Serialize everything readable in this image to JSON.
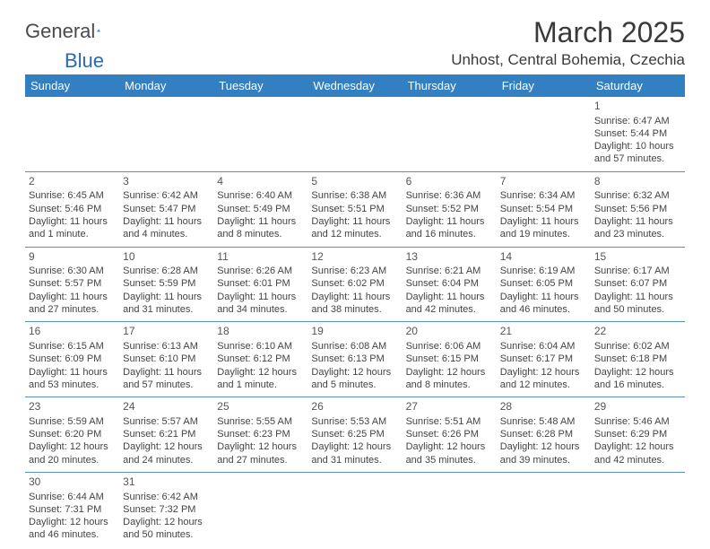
{
  "logo": {
    "part1": "General",
    "part2": "Blue"
  },
  "title": "March 2025",
  "location": "Unhost, Central Bohemia, Czechia",
  "colors": {
    "header_bg": "#327fc2",
    "header_text": "#ffffff",
    "border": "#5a8fc4",
    "text": "#444444",
    "title_text": "#3a3a3a",
    "logo_dark": "#4a4a4a",
    "logo_blue": "#2a6bb0"
  },
  "fonts": {
    "title_size": 32,
    "location_size": 17,
    "dayhead_size": 13,
    "cell_size": 11
  },
  "dayNames": [
    "Sunday",
    "Monday",
    "Tuesday",
    "Wednesday",
    "Thursday",
    "Friday",
    "Saturday"
  ],
  "weeks": [
    [
      null,
      null,
      null,
      null,
      null,
      null,
      {
        "n": "1",
        "sr": "6:47 AM",
        "ss": "5:44 PM",
        "dl": "10 hours and 57 minutes."
      }
    ],
    [
      {
        "n": "2",
        "sr": "6:45 AM",
        "ss": "5:46 PM",
        "dl": "11 hours and 1 minute."
      },
      {
        "n": "3",
        "sr": "6:42 AM",
        "ss": "5:47 PM",
        "dl": "11 hours and 4 minutes."
      },
      {
        "n": "4",
        "sr": "6:40 AM",
        "ss": "5:49 PM",
        "dl": "11 hours and 8 minutes."
      },
      {
        "n": "5",
        "sr": "6:38 AM",
        "ss": "5:51 PM",
        "dl": "11 hours and 12 minutes."
      },
      {
        "n": "6",
        "sr": "6:36 AM",
        "ss": "5:52 PM",
        "dl": "11 hours and 16 minutes."
      },
      {
        "n": "7",
        "sr": "6:34 AM",
        "ss": "5:54 PM",
        "dl": "11 hours and 19 minutes."
      },
      {
        "n": "8",
        "sr": "6:32 AM",
        "ss": "5:56 PM",
        "dl": "11 hours and 23 minutes."
      }
    ],
    [
      {
        "n": "9",
        "sr": "6:30 AM",
        "ss": "5:57 PM",
        "dl": "11 hours and 27 minutes."
      },
      {
        "n": "10",
        "sr": "6:28 AM",
        "ss": "5:59 PM",
        "dl": "11 hours and 31 minutes."
      },
      {
        "n": "11",
        "sr": "6:26 AM",
        "ss": "6:01 PM",
        "dl": "11 hours and 34 minutes."
      },
      {
        "n": "12",
        "sr": "6:23 AM",
        "ss": "6:02 PM",
        "dl": "11 hours and 38 minutes."
      },
      {
        "n": "13",
        "sr": "6:21 AM",
        "ss": "6:04 PM",
        "dl": "11 hours and 42 minutes."
      },
      {
        "n": "14",
        "sr": "6:19 AM",
        "ss": "6:05 PM",
        "dl": "11 hours and 46 minutes."
      },
      {
        "n": "15",
        "sr": "6:17 AM",
        "ss": "6:07 PM",
        "dl": "11 hours and 50 minutes."
      }
    ],
    [
      {
        "n": "16",
        "sr": "6:15 AM",
        "ss": "6:09 PM",
        "dl": "11 hours and 53 minutes."
      },
      {
        "n": "17",
        "sr": "6:13 AM",
        "ss": "6:10 PM",
        "dl": "11 hours and 57 minutes."
      },
      {
        "n": "18",
        "sr": "6:10 AM",
        "ss": "6:12 PM",
        "dl": "12 hours and 1 minute."
      },
      {
        "n": "19",
        "sr": "6:08 AM",
        "ss": "6:13 PM",
        "dl": "12 hours and 5 minutes."
      },
      {
        "n": "20",
        "sr": "6:06 AM",
        "ss": "6:15 PM",
        "dl": "12 hours and 8 minutes."
      },
      {
        "n": "21",
        "sr": "6:04 AM",
        "ss": "6:17 PM",
        "dl": "12 hours and 12 minutes."
      },
      {
        "n": "22",
        "sr": "6:02 AM",
        "ss": "6:18 PM",
        "dl": "12 hours and 16 minutes."
      }
    ],
    [
      {
        "n": "23",
        "sr": "5:59 AM",
        "ss": "6:20 PM",
        "dl": "12 hours and 20 minutes."
      },
      {
        "n": "24",
        "sr": "5:57 AM",
        "ss": "6:21 PM",
        "dl": "12 hours and 24 minutes."
      },
      {
        "n": "25",
        "sr": "5:55 AM",
        "ss": "6:23 PM",
        "dl": "12 hours and 27 minutes."
      },
      {
        "n": "26",
        "sr": "5:53 AM",
        "ss": "6:25 PM",
        "dl": "12 hours and 31 minutes."
      },
      {
        "n": "27",
        "sr": "5:51 AM",
        "ss": "6:26 PM",
        "dl": "12 hours and 35 minutes."
      },
      {
        "n": "28",
        "sr": "5:48 AM",
        "ss": "6:28 PM",
        "dl": "12 hours and 39 minutes."
      },
      {
        "n": "29",
        "sr": "5:46 AM",
        "ss": "6:29 PM",
        "dl": "12 hours and 42 minutes."
      }
    ],
    [
      {
        "n": "30",
        "sr": "6:44 AM",
        "ss": "7:31 PM",
        "dl": "12 hours and 46 minutes."
      },
      {
        "n": "31",
        "sr": "6:42 AM",
        "ss": "7:32 PM",
        "dl": "12 hours and 50 minutes."
      },
      null,
      null,
      null,
      null,
      null
    ]
  ],
  "labels": {
    "sunrise": "Sunrise:",
    "sunset": "Sunset:",
    "daylight": "Daylight:"
  }
}
